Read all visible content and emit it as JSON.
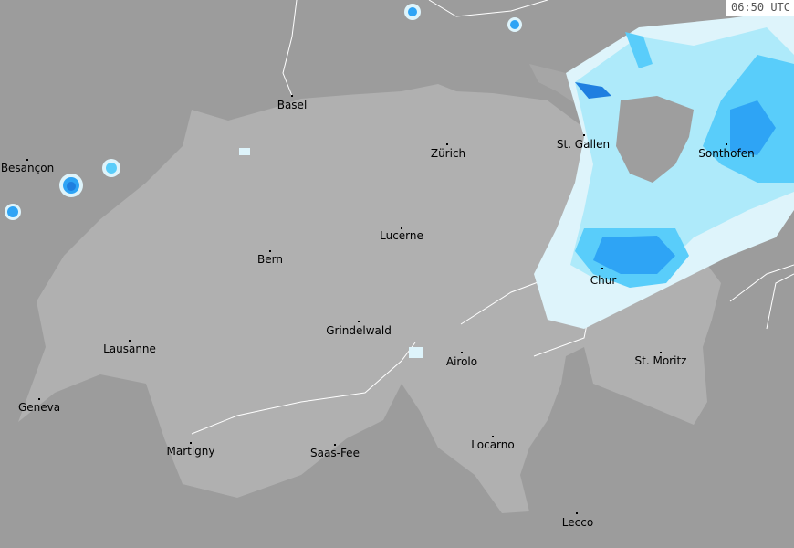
{
  "timestamp": "06:50 UTC",
  "colors": {
    "background": "#9c9c9c",
    "switzerland": "#b0b0b0",
    "rain_light": "#def4fb",
    "rain_light2": "#aeeafa",
    "rain_moderate": "#59cdfa",
    "rain_heavy": "#2ea4f5",
    "rain_very_heavy": "#1f7fe0",
    "border": "#ffffff",
    "country_border": "#777777"
  },
  "cities": [
    {
      "name": "Basel"
    },
    {
      "name": "Zürich"
    },
    {
      "name": "St. Gallen"
    },
    {
      "name": "Sonthofen"
    },
    {
      "name": "Besançon"
    },
    {
      "name": "Lucerne"
    },
    {
      "name": "Bern"
    },
    {
      "name": "Chur"
    },
    {
      "name": "Grindelwald"
    },
    {
      "name": "Lausanne"
    },
    {
      "name": "Airolo"
    },
    {
      "name": "St. Moritz"
    },
    {
      "name": "Geneva"
    },
    {
      "name": "Martigny"
    },
    {
      "name": "Saas-Fee"
    },
    {
      "name": "Locarno"
    },
    {
      "name": "Lecco"
    }
  ]
}
